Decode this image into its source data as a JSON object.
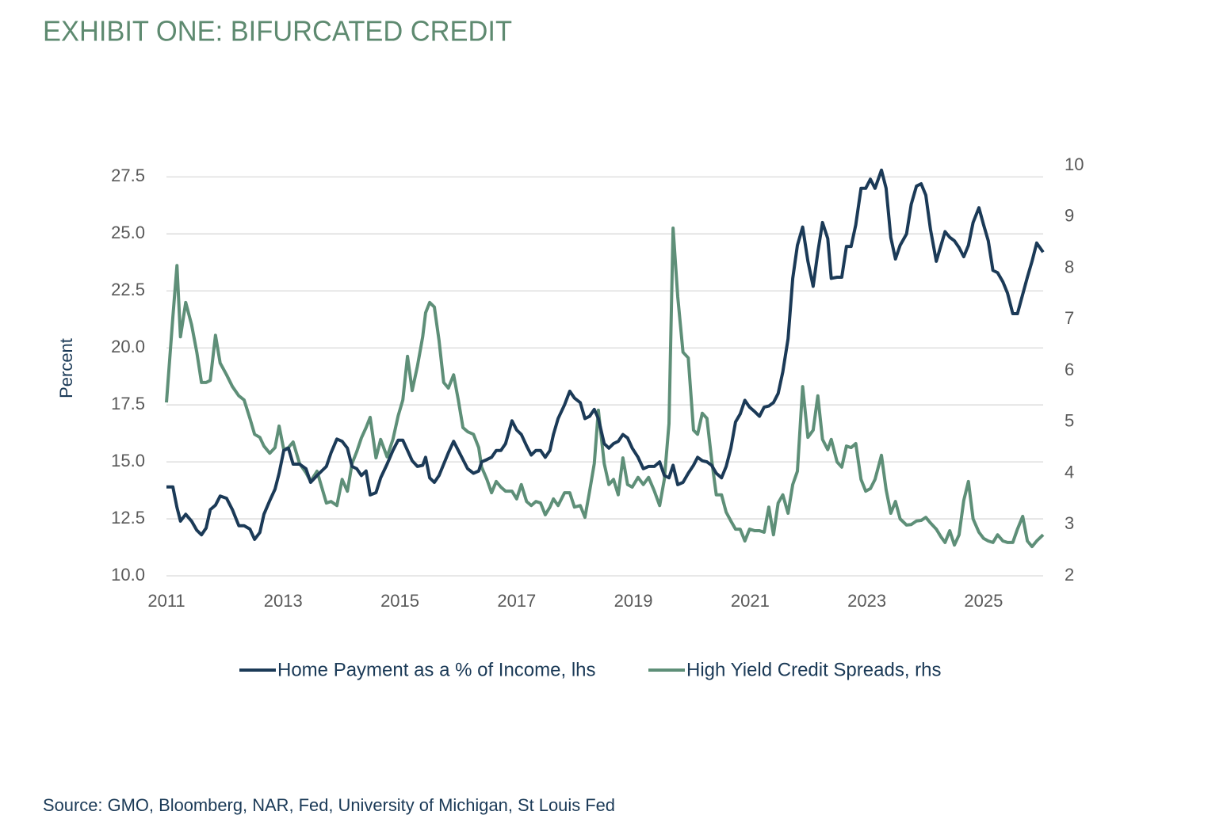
{
  "chart_data": {
    "type": "line",
    "title": "EXHIBIT ONE: BIFURCATED CREDIT",
    "y_label": "Percent",
    "source": "Source: GMO, Bloomberg, NAR, Fed, University of Michigan, St Louis Fed",
    "x": [
      2011.0,
      2011.11,
      2011.18,
      2011.24,
      2011.33,
      2011.43,
      2011.52,
      2011.6,
      2011.68,
      2011.75,
      2011.84,
      2011.92,
      2012.03,
      2012.13,
      2012.24,
      2012.33,
      2012.43,
      2012.51,
      2012.6,
      2012.67,
      2012.77,
      2012.86,
      2012.93,
      2013.01,
      2013.09,
      2013.17,
      2013.28,
      2013.39,
      2013.47,
      2013.58,
      2013.74,
      2013.82,
      2013.92,
      2014.01,
      2014.1,
      2014.18,
      2014.26,
      2014.34,
      2014.42,
      2014.49,
      2014.59,
      2014.67,
      2014.78,
      2014.88,
      2014.97,
      2015.05,
      2015.13,
      2015.21,
      2015.3,
      2015.39,
      2015.44,
      2015.51,
      2015.59,
      2015.67,
      2015.75,
      2015.83,
      2015.92,
      2016.0,
      2016.08,
      2016.16,
      2016.26,
      2016.35,
      2016.4,
      2016.49,
      2016.57,
      2016.65,
      2016.73,
      2016.81,
      2016.92,
      2017.0,
      2017.08,
      2017.17,
      2017.25,
      2017.33,
      2017.41,
      2017.49,
      2017.57,
      2017.63,
      2017.71,
      2017.82,
      2017.91,
      2017.99,
      2018.09,
      2018.17,
      2018.25,
      2018.33,
      2018.4,
      2018.5,
      2018.58,
      2018.66,
      2018.74,
      2018.82,
      2018.9,
      2018.98,
      2019.08,
      2019.17,
      2019.26,
      2019.36,
      2019.45,
      2019.53,
      2019.61,
      2019.68,
      2019.76,
      2019.85,
      2019.94,
      2020.03,
      2020.1,
      2020.18,
      2020.26,
      2020.34,
      2020.42,
      2020.51,
      2020.59,
      2020.67,
      2020.75,
      2020.83,
      2020.91,
      2020.99,
      2021.08,
      2021.16,
      2021.24,
      2021.32,
      2021.4,
      2021.48,
      2021.56,
      2021.65,
      2021.73,
      2021.81,
      2021.9,
      2021.99,
      2022.08,
      2022.16,
      2022.24,
      2022.33,
      2022.39,
      2022.49,
      2022.57,
      2022.65,
      2022.73,
      2022.81,
      2022.9,
      2022.98,
      2023.06,
      2023.14,
      2023.25,
      2023.33,
      2023.41,
      2023.49,
      2023.57,
      2023.68,
      2023.76,
      2023.85,
      2023.93,
      2024.01,
      2024.09,
      2024.19,
      2024.27,
      2024.34,
      2024.42,
      2024.5,
      2024.58,
      2024.66,
      2024.74,
      2024.82,
      2024.92,
      2025.0,
      2025.08,
      2025.16,
      2025.24,
      2025.33,
      2025.41,
      2025.5,
      2025.58,
      2025.67,
      2025.75,
      2025.83,
      2025.91,
      2026.02
    ],
    "series": [
      {
        "name": "Home Payment as a % of Income, lhs",
        "color": "#1b3a57",
        "axis": "y",
        "values": [
          13.9,
          13.9,
          13.0,
          12.4,
          12.7,
          12.4,
          12.0,
          11.8,
          12.1,
          12.9,
          13.1,
          13.5,
          13.4,
          12.9,
          12.2,
          12.2,
          12.05,
          11.6,
          11.9,
          12.7,
          13.3,
          13.8,
          14.5,
          15.5,
          15.6,
          14.9,
          14.9,
          14.7,
          14.1,
          14.4,
          14.8,
          15.4,
          16.0,
          15.9,
          15.6,
          14.8,
          14.7,
          14.4,
          14.6,
          13.55,
          13.65,
          14.3,
          14.9,
          15.5,
          15.95,
          15.95,
          15.5,
          15.05,
          14.8,
          14.85,
          15.2,
          14.3,
          14.1,
          14.4,
          14.9,
          15.4,
          15.9,
          15.5,
          15.1,
          14.7,
          14.5,
          14.6,
          15.0,
          15.1,
          15.2,
          15.5,
          15.5,
          15.8,
          16.8,
          16.4,
          16.2,
          15.7,
          15.3,
          15.5,
          15.5,
          15.2,
          15.5,
          16.2,
          16.9,
          17.5,
          18.1,
          17.8,
          17.6,
          16.9,
          17.0,
          17.3,
          16.9,
          15.8,
          15.6,
          15.8,
          15.9,
          16.2,
          16.05,
          15.6,
          15.2,
          14.7,
          14.8,
          14.8,
          15.0,
          14.4,
          14.3,
          14.85,
          14.0,
          14.1,
          14.5,
          14.85,
          15.2,
          15.05,
          15.0,
          14.85,
          14.5,
          14.3,
          14.8,
          15.6,
          16.75,
          17.1,
          17.7,
          17.4,
          17.2,
          17.0,
          17.4,
          17.45,
          17.6,
          18.0,
          18.95,
          20.4,
          23.05,
          24.5,
          25.3,
          23.8,
          22.7,
          24.2,
          25.5,
          24.8,
          23.05,
          23.1,
          23.1,
          24.45,
          24.45,
          25.4,
          27.0,
          27.0,
          27.4,
          27.0,
          27.8,
          27.0,
          24.85,
          23.9,
          24.5,
          25.0,
          26.3,
          27.1,
          27.2,
          26.7,
          25.2,
          23.8,
          24.5,
          25.1,
          24.85,
          24.7,
          24.4,
          24.0,
          24.5,
          25.5,
          26.15,
          25.4,
          24.7,
          23.4,
          23.3,
          22.9,
          22.4,
          21.5,
          21.5,
          22.35,
          23.1,
          23.8,
          24.6,
          24.2
        ]
      },
      {
        "name": "High Yield Credit Spreads, rhs",
        "color": "#5e8f78",
        "axis": "y2",
        "values": [
          5.38,
          7.05,
          8.05,
          6.66,
          7.33,
          6.9,
          6.36,
          5.77,
          5.77,
          5.81,
          6.69,
          6.15,
          5.92,
          5.69,
          5.51,
          5.43,
          5.07,
          4.76,
          4.7,
          4.53,
          4.39,
          4.5,
          4.92,
          4.46,
          4.5,
          4.61,
          4.19,
          4.01,
          3.84,
          4.04,
          3.42,
          3.45,
          3.37,
          3.88,
          3.65,
          4.19,
          4.42,
          4.69,
          4.89,
          5.09,
          4.3,
          4.66,
          4.32,
          4.66,
          5.12,
          5.43,
          6.28,
          5.61,
          6.09,
          6.66,
          7.13,
          7.33,
          7.24,
          6.59,
          5.77,
          5.66,
          5.92,
          5.43,
          4.89,
          4.81,
          4.76,
          4.5,
          4.12,
          3.88,
          3.62,
          3.84,
          3.73,
          3.65,
          3.65,
          3.5,
          3.78,
          3.45,
          3.37,
          3.45,
          3.42,
          3.19,
          3.34,
          3.5,
          3.37,
          3.62,
          3.62,
          3.34,
          3.37,
          3.14,
          3.65,
          4.19,
          5.23,
          4.19,
          3.78,
          3.88,
          3.58,
          4.3,
          3.78,
          3.73,
          3.92,
          3.78,
          3.92,
          3.65,
          3.37,
          3.88,
          4.97,
          8.78,
          7.44,
          6.36,
          6.25,
          4.84,
          4.76,
          5.17,
          5.07,
          4.27,
          3.58,
          3.58,
          3.24,
          3.07,
          2.91,
          2.91,
          2.68,
          2.91,
          2.88,
          2.88,
          2.85,
          3.34,
          2.8,
          3.42,
          3.58,
          3.22,
          3.78,
          4.04,
          5.69,
          4.7,
          4.84,
          5.51,
          4.66,
          4.46,
          4.66,
          4.22,
          4.12,
          4.53,
          4.5,
          4.58,
          3.88,
          3.65,
          3.7,
          3.88,
          4.35,
          3.68,
          3.22,
          3.45,
          3.11,
          2.99,
          3.0,
          3.07,
          3.08,
          3.14,
          3.03,
          2.91,
          2.76,
          2.65,
          2.88,
          2.6,
          2.8,
          3.47,
          3.84,
          3.11,
          2.85,
          2.73,
          2.68,
          2.65,
          2.8,
          2.68,
          2.65,
          2.65,
          2.91,
          3.16,
          2.68,
          2.57,
          2.68,
          2.8
        ]
      }
    ],
    "xlim": [
      2011,
      2026.02
    ],
    "xticks": [
      2011,
      2013,
      2015,
      2017,
      2019,
      2021,
      2023,
      2025
    ],
    "ylim": [
      10,
      28
    ],
    "yticks": [
      {
        "value": 10,
        "label": "10.0"
      },
      12.5,
      {
        "value": 15,
        "label": "15.0"
      },
      17.5,
      {
        "value": 20,
        "label": "20.0"
      },
      22.5,
      {
        "value": 25,
        "label": "25.0"
      },
      27.5
    ],
    "y2lim": [
      2,
      10
    ],
    "y2ticks": [
      2,
      3,
      4,
      5,
      6,
      7,
      8,
      9,
      10
    ],
    "grid": true,
    "legend": "bottom",
    "title_color": "#5e8a70"
  }
}
